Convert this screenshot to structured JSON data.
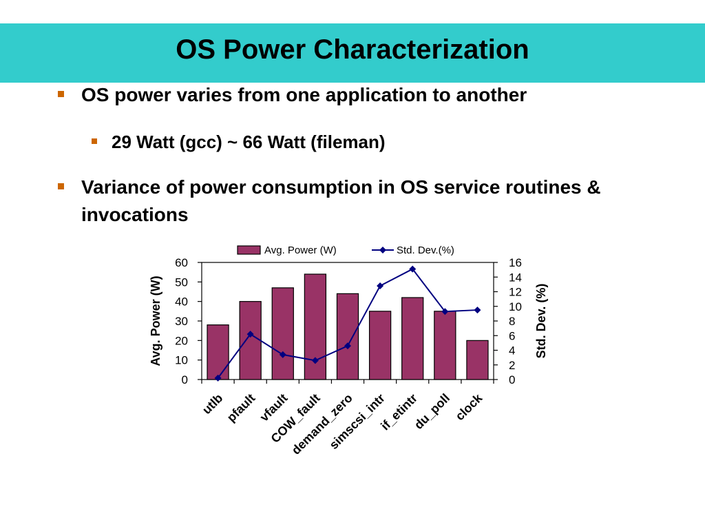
{
  "slide": {
    "title": "OS Power Characterization",
    "bullets": [
      "OS power varies from one application to another",
      "29 Watt (gcc) ~ 66 Watt (fileman)",
      "Variance of power consumption in OS service routines & invocations"
    ]
  },
  "colors": {
    "title_bar": "#33cccc",
    "bullet_marker": "#cc6600",
    "bar_fill": "#993366",
    "line": "#000080"
  },
  "chart_data": {
    "type": "bar",
    "categories": [
      "utlb",
      "pfault",
      "vfault",
      "COW_fault",
      "demand_zero",
      "simscsi_intr",
      "if_etintr",
      "du_poll",
      "clock"
    ],
    "series": [
      {
        "name": "Avg. Power (W)",
        "type": "bar",
        "axis": "left",
        "values": [
          28,
          40,
          47,
          54,
          44,
          35,
          42,
          35,
          20
        ]
      },
      {
        "name": "Std. Dev.(%)",
        "type": "line",
        "axis": "right",
        "values": [
          0.2,
          6.2,
          3.4,
          2.6,
          4.6,
          12.8,
          15.1,
          9.3,
          9.5
        ]
      }
    ],
    "ylabel": "Avg. Power (W)",
    "y2label": "Std. Dev. (%)",
    "ylim": [
      0,
      60
    ],
    "y2lim": [
      0,
      16
    ],
    "yticks": [
      0,
      10,
      20,
      30,
      40,
      50,
      60
    ],
    "y2ticks": [
      0,
      2,
      4,
      6,
      8,
      10,
      12,
      14,
      16
    ],
    "legend": "top"
  }
}
